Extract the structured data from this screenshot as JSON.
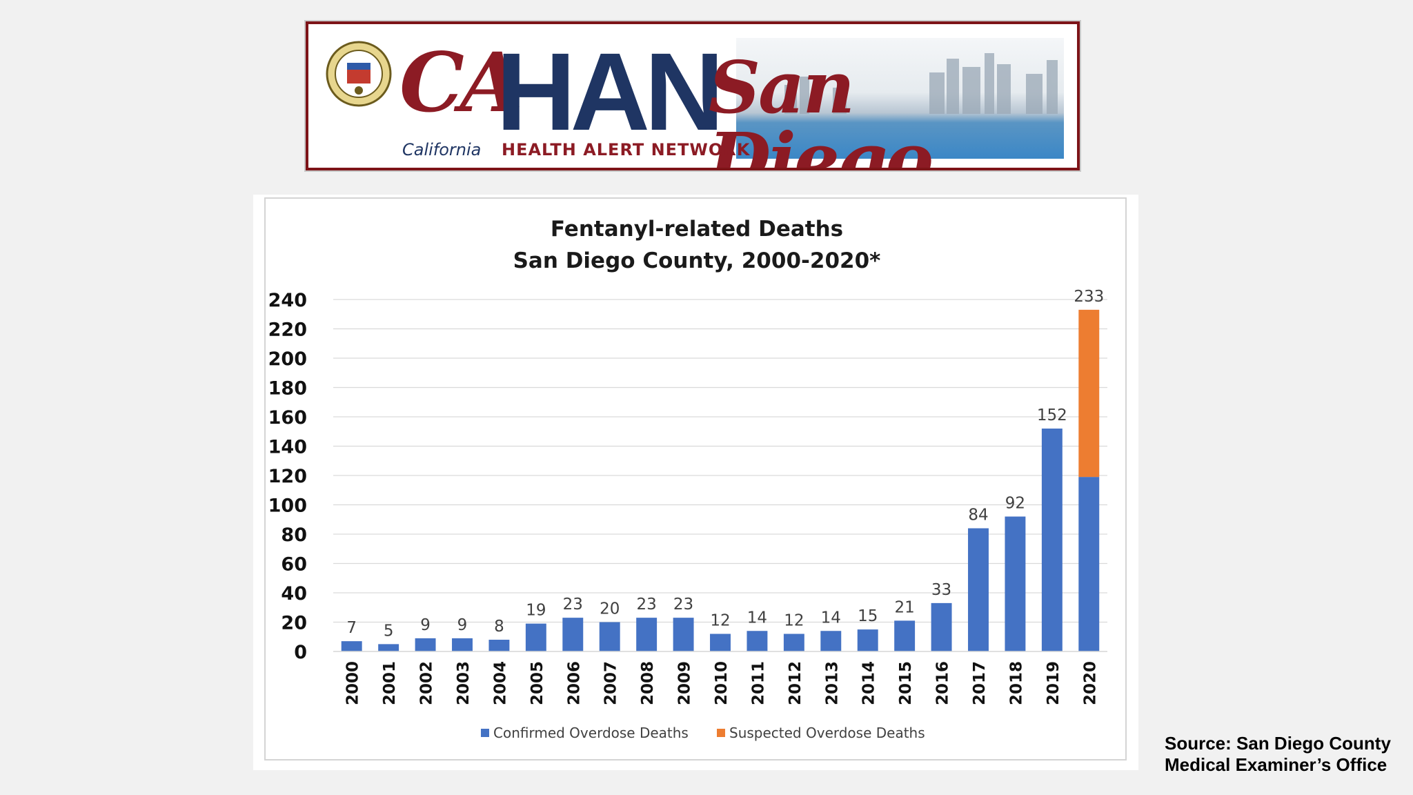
{
  "banner": {
    "logo_ca": "CA",
    "logo_han": "HAN",
    "logo_location": "San Diego",
    "subtitle_state": "California",
    "subtitle_network": "HEALTH ALERT NETWORK",
    "seal_icon": "county-seal-icon",
    "colors": {
      "navy": "#1f3563",
      "maroon": "#8c1b24"
    }
  },
  "source": {
    "line1": "Source: San Diego County",
    "line2": "Medical Examiner’s Office"
  },
  "chart_data": {
    "type": "bar",
    "stacked": true,
    "title": "Fentanyl-related Deaths",
    "subtitle": "San Diego County, 2000-2020*",
    "xlabel": "",
    "ylabel": "",
    "ylim": [
      0,
      240
    ],
    "yticks": [
      0,
      20,
      40,
      60,
      80,
      100,
      120,
      140,
      160,
      180,
      200,
      220,
      240
    ],
    "grid": true,
    "legend_position": "bottom",
    "categories": [
      "2000",
      "2001",
      "2002",
      "2003",
      "2004",
      "2005",
      "2006",
      "2007",
      "2008",
      "2009",
      "2010",
      "2011",
      "2012",
      "2013",
      "2014",
      "2015",
      "2016",
      "2017",
      "2018",
      "2019",
      "2020"
    ],
    "series": [
      {
        "name": "Confirmed Overdose Deaths",
        "color": "#4472c4",
        "values": [
          7,
          5,
          9,
          9,
          8,
          19,
          23,
          20,
          23,
          23,
          12,
          14,
          12,
          14,
          15,
          21,
          33,
          84,
          92,
          152,
          119
        ]
      },
      {
        "name": "Suspected Overdose Deaths",
        "color": "#ed7d31",
        "values": [
          0,
          0,
          0,
          0,
          0,
          0,
          0,
          0,
          0,
          0,
          0,
          0,
          0,
          0,
          0,
          0,
          0,
          0,
          0,
          0,
          114
        ]
      }
    ],
    "totals": [
      7,
      5,
      9,
      9,
      8,
      19,
      23,
      20,
      23,
      23,
      12,
      14,
      12,
      14,
      15,
      21,
      33,
      84,
      92,
      152,
      233
    ]
  }
}
